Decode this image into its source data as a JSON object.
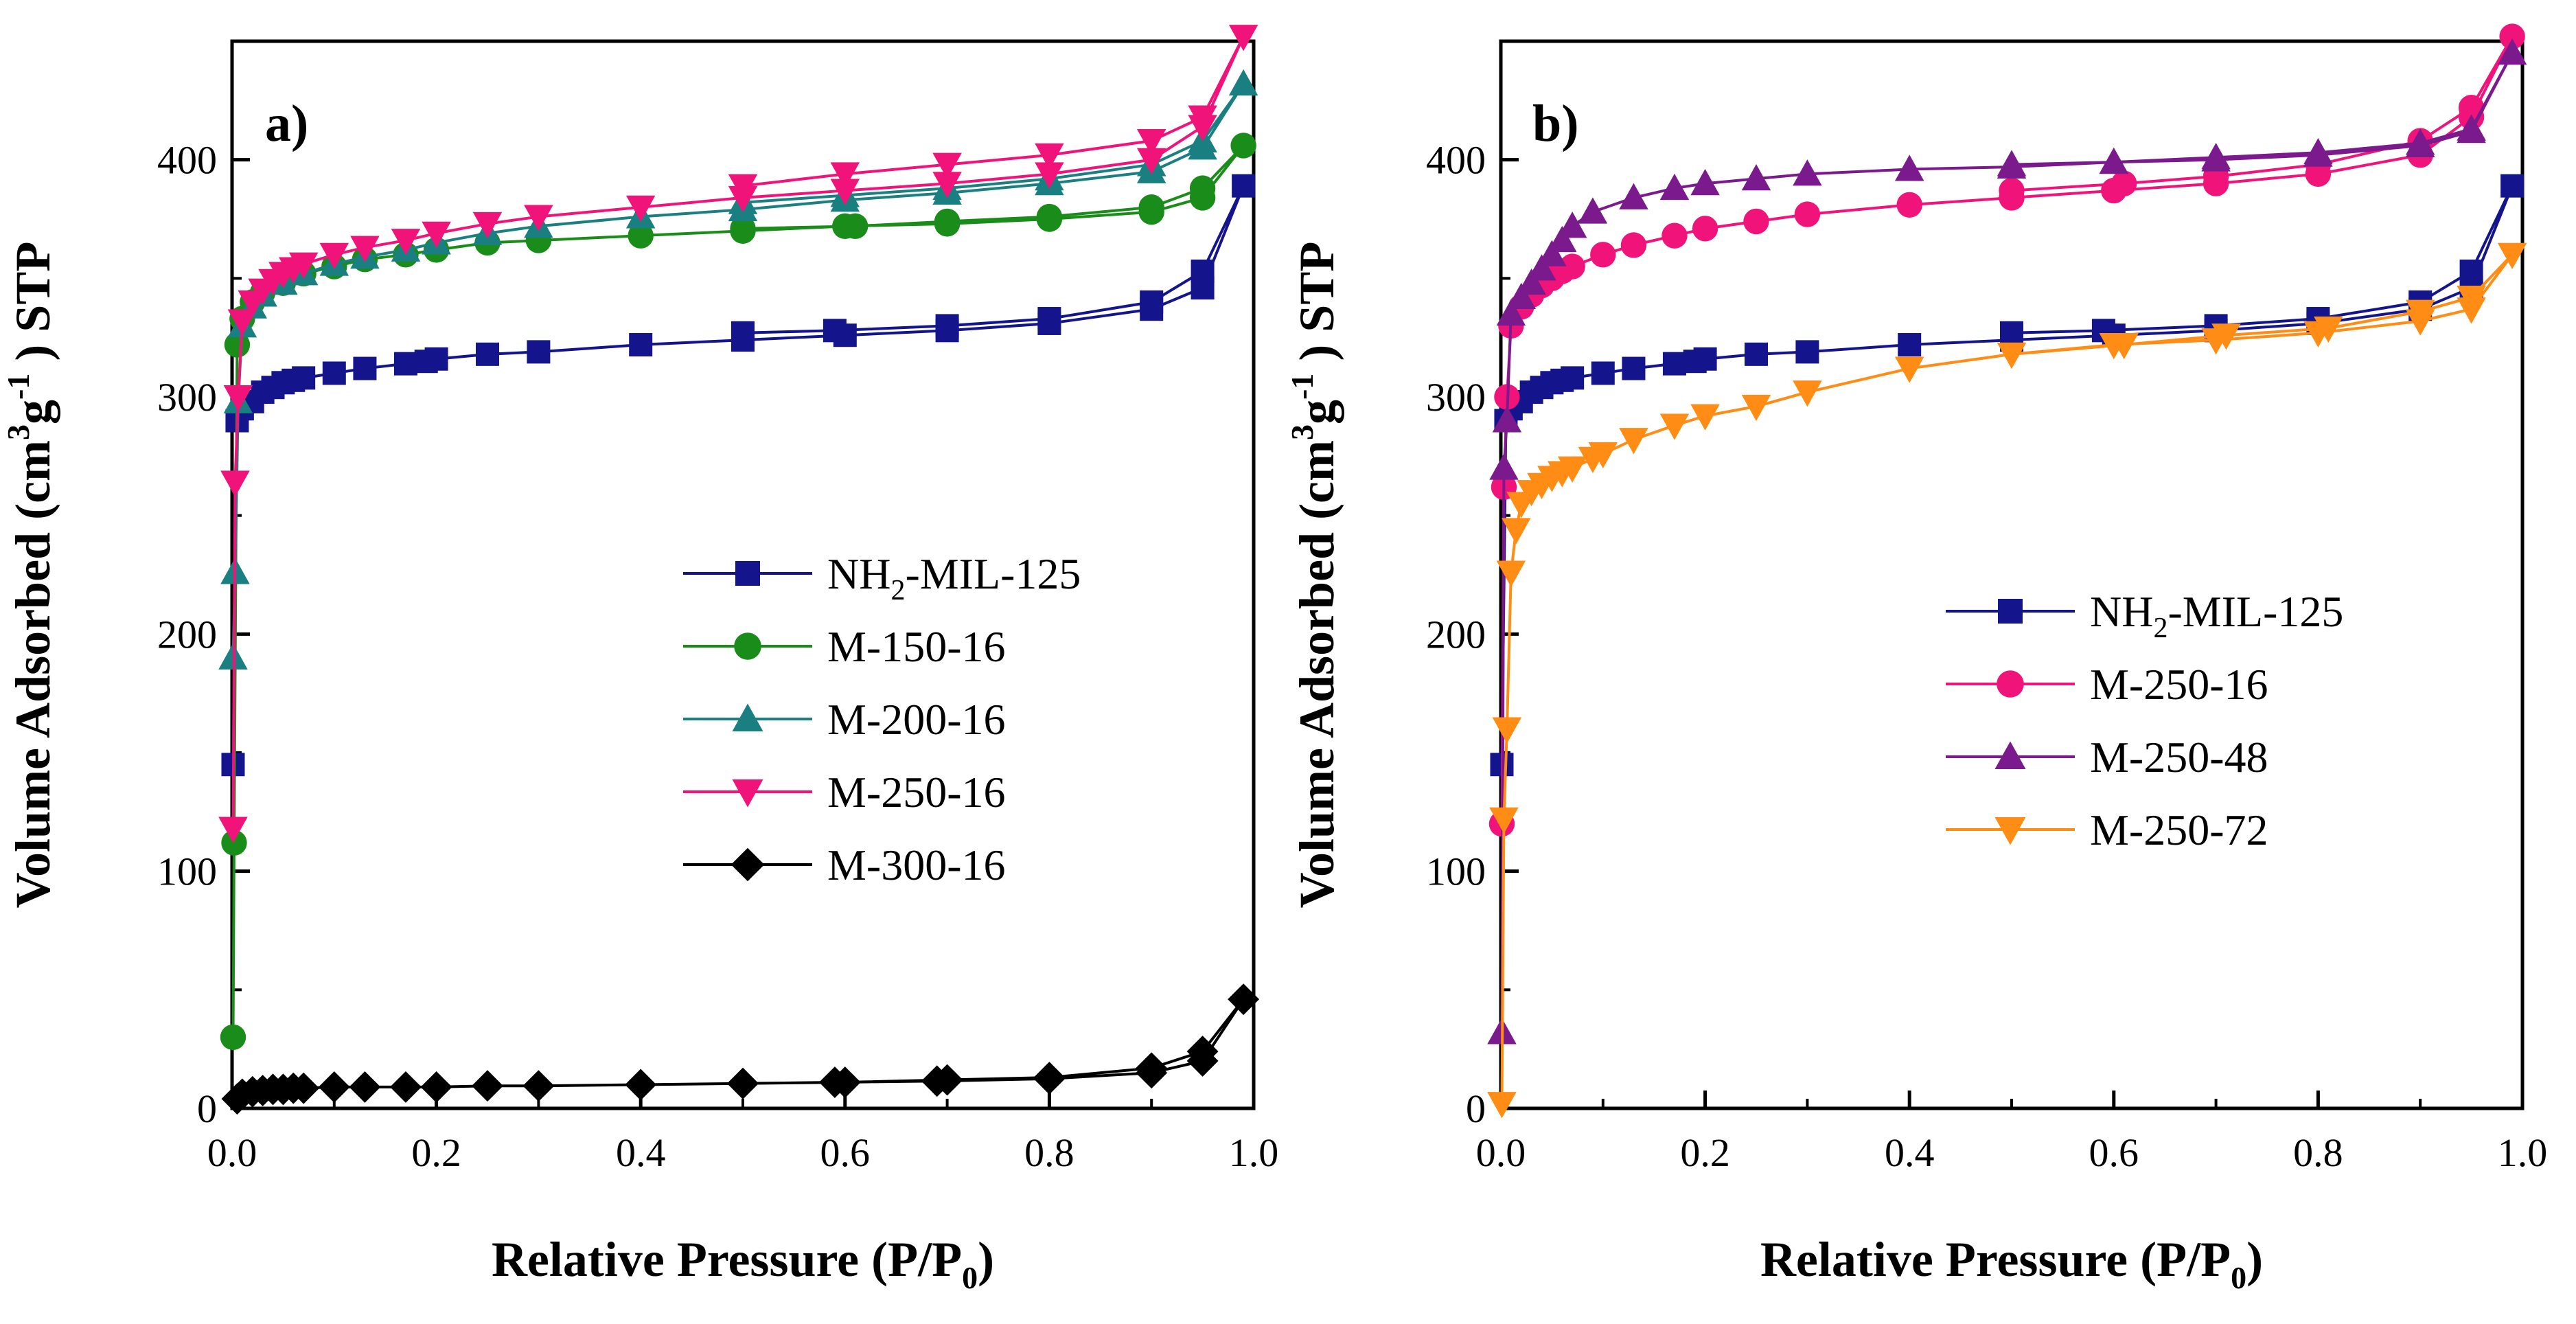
{
  "chart_data": [
    {
      "type": "line",
      "panel_label": "a)",
      "xlabel": {
        "main": "Relative Pressure (P/P",
        "sub": "0",
        "tail": ")"
      },
      "ylabel": {
        "main": "Volume Adsorbed  (cm",
        "sup1": "3",
        "mid": "g",
        "sup2": "-1",
        "tail": ") STP"
      },
      "xlim": [
        0,
        1.0
      ],
      "ylim": [
        0,
        450
      ],
      "xticks": [
        0.0,
        0.2,
        0.4,
        0.6,
        0.8,
        1.0
      ],
      "xtick_labels": [
        "0.0",
        "0.2",
        "0.4",
        "0.6",
        "0.8",
        "1.0"
      ],
      "yticks": [
        0,
        100,
        200,
        300,
        400
      ],
      "ytick_labels": [
        "0",
        "100",
        "200",
        "300",
        "400"
      ],
      "legend_position": "center-right",
      "series": [
        {
          "name": "NH2-MIL-125",
          "label_main": "NH",
          "label_sub": "2",
          "label_tail": "-MIL-125",
          "color": "#14148c",
          "marker": "square",
          "x": [
            0.001,
            0.005,
            0.01,
            0.02,
            0.03,
            0.04,
            0.05,
            0.06,
            0.07,
            0.1,
            0.13,
            0.17,
            0.19,
            0.2,
            0.25,
            0.3,
            0.4,
            0.5,
            0.6,
            0.7,
            0.8,
            0.9,
            0.95,
            0.99,
            0.95,
            0.9,
            0.8,
            0.7,
            0.59,
            0.5
          ],
          "y": [
            145,
            290,
            295,
            298,
            302,
            304,
            306,
            307,
            308,
            310,
            312,
            314,
            315,
            316,
            318,
            319,
            322,
            324,
            326,
            328,
            331,
            337,
            346,
            389,
            353,
            340,
            333,
            330,
            328,
            327
          ]
        },
        {
          "name": "M-150-16",
          "color": "#1a8c1a",
          "marker": "circle",
          "x": [
            0.001,
            0.002,
            0.005,
            0.01,
            0.02,
            0.03,
            0.05,
            0.07,
            0.1,
            0.13,
            0.17,
            0.2,
            0.25,
            0.3,
            0.4,
            0.5,
            0.6,
            0.7,
            0.8,
            0.9,
            0.95,
            0.99,
            0.95,
            0.9,
            0.8,
            0.7,
            0.61,
            0.5
          ],
          "y": [
            30,
            112,
            322,
            333,
            340,
            344,
            348,
            352,
            355,
            358,
            360,
            362,
            365,
            366,
            368,
            370,
            372,
            373,
            375,
            378,
            384,
            406,
            388,
            380,
            376,
            374,
            372,
            371
          ]
        },
        {
          "name": "M-200-16",
          "color": "#1a7f80",
          "marker": "triangle-up",
          "x": [
            0.001,
            0.003,
            0.006,
            0.01,
            0.02,
            0.03,
            0.05,
            0.07,
            0.1,
            0.13,
            0.17,
            0.2,
            0.25,
            0.3,
            0.4,
            0.5,
            0.6,
            0.7,
            0.8,
            0.9,
            0.95,
            0.99,
            0.95,
            0.9,
            0.8,
            0.7,
            0.6,
            0.5
          ],
          "y": [
            190,
            226,
            298,
            330,
            338,
            343,
            348,
            352,
            356,
            359,
            362,
            365,
            369,
            372,
            376,
            379,
            383,
            386,
            390,
            395,
            405,
            432,
            408,
            398,
            392,
            388,
            385,
            382
          ]
        },
        {
          "name": "M-250-16",
          "color": "#f0147a",
          "marker": "triangle-down",
          "x": [
            0.001,
            0.003,
            0.006,
            0.01,
            0.02,
            0.03,
            0.04,
            0.05,
            0.06,
            0.07,
            0.1,
            0.13,
            0.17,
            0.2,
            0.25,
            0.3,
            0.4,
            0.5,
            0.6,
            0.7,
            0.8,
            0.9,
            0.95,
            0.99,
            0.95,
            0.9,
            0.8,
            0.7,
            0.6,
            0.5
          ],
          "y": [
            118,
            264,
            300,
            332,
            340,
            345,
            349,
            352,
            354,
            356,
            360,
            363,
            366,
            369,
            373,
            376,
            380,
            384,
            387,
            390,
            394,
            400,
            414,
            452,
            418,
            408,
            402,
            398,
            394,
            389
          ]
        },
        {
          "name": "M-300-16",
          "color": "#000000",
          "marker": "diamond",
          "x": [
            0.005,
            0.01,
            0.02,
            0.03,
            0.04,
            0.05,
            0.06,
            0.07,
            0.1,
            0.13,
            0.17,
            0.2,
            0.25,
            0.3,
            0.4,
            0.5,
            0.59,
            0.69,
            0.8,
            0.9,
            0.95,
            0.99,
            0.95,
            0.9,
            0.8,
            0.7,
            0.6,
            0.5
          ],
          "y": [
            4,
            6,
            7,
            7.5,
            8,
            8,
            8.5,
            8.5,
            9,
            9,
            9,
            9,
            9.5,
            9.5,
            10,
            10.5,
            11,
            11.5,
            12.5,
            15,
            20,
            46,
            24,
            17,
            13,
            12,
            11,
            10.5
          ]
        }
      ]
    },
    {
      "type": "line",
      "panel_label": "b)",
      "xlabel": {
        "main": "Relative Pressure (P/P",
        "sub": "0",
        "tail": ")"
      },
      "ylabel": {
        "main": "Volume Adsorbed  (cm",
        "sup1": "3",
        "mid": "g",
        "sup2": "-1",
        "tail": ") STP"
      },
      "xlim": [
        0,
        1.0
      ],
      "ylim": [
        0,
        450
      ],
      "xticks": [
        0.0,
        0.2,
        0.4,
        0.6,
        0.8,
        1.0
      ],
      "xtick_labels": [
        "0.0",
        "0.2",
        "0.4",
        "0.6",
        "0.8",
        "1.0"
      ],
      "yticks": [
        0,
        100,
        200,
        300,
        400
      ],
      "ytick_labels": [
        "0",
        "100",
        "200",
        "300",
        "400"
      ],
      "legend_position": "center-right",
      "series": [
        {
          "name": "NH2-MIL-125",
          "label_main": "NH",
          "label_sub": "2",
          "label_tail": "-MIL-125",
          "color": "#14148c",
          "marker": "square",
          "x": [
            0.001,
            0.005,
            0.01,
            0.02,
            0.03,
            0.04,
            0.05,
            0.06,
            0.07,
            0.1,
            0.13,
            0.17,
            0.19,
            0.2,
            0.25,
            0.3,
            0.4,
            0.5,
            0.6,
            0.7,
            0.8,
            0.9,
            0.95,
            0.99,
            0.95,
            0.9,
            0.8,
            0.7,
            0.59,
            0.5
          ],
          "y": [
            145,
            290,
            295,
            298,
            302,
            304,
            306,
            307,
            308,
            310,
            312,
            314,
            315,
            316,
            318,
            319,
            322,
            324,
            326,
            328,
            331,
            337,
            346,
            389,
            353,
            340,
            333,
            330,
            328,
            327
          ]
        },
        {
          "name": "M-250-16",
          "color": "#f0147a",
          "marker": "circle",
          "x": [
            0.001,
            0.003,
            0.006,
            0.01,
            0.02,
            0.03,
            0.04,
            0.05,
            0.06,
            0.07,
            0.1,
            0.13,
            0.17,
            0.2,
            0.25,
            0.3,
            0.4,
            0.5,
            0.6,
            0.7,
            0.8,
            0.9,
            0.95,
            0.99,
            0.95,
            0.9,
            0.8,
            0.7,
            0.61,
            0.5
          ],
          "y": [
            120,
            262,
            300,
            330,
            338,
            343,
            347,
            350,
            353,
            355,
            360,
            364,
            368,
            371,
            374,
            377,
            381,
            384,
            387,
            390,
            394,
            402,
            418,
            452,
            422,
            408,
            398,
            393,
            390,
            387
          ]
        },
        {
          "name": "M-250-48",
          "color": "#7a1a8c",
          "marker": "triangle-up",
          "x": [
            0.001,
            0.003,
            0.006,
            0.01,
            0.02,
            0.03,
            0.04,
            0.05,
            0.06,
            0.07,
            0.09,
            0.13,
            0.17,
            0.2,
            0.25,
            0.3,
            0.4,
            0.5,
            0.6,
            0.7,
            0.8,
            0.9,
            0.95,
            0.99,
            0.95,
            0.9,
            0.8,
            0.7,
            0.6,
            0.5
          ],
          "y": [
            32,
            270,
            290,
            335,
            342,
            348,
            354,
            360,
            366,
            372,
            378,
            384,
            388,
            390,
            392,
            394,
            396,
            397,
            399,
            400,
            402,
            406,
            412,
            445,
            413,
            407,
            403,
            401,
            399,
            398
          ]
        },
        {
          "name": "M-250-72",
          "color": "#ff8c14",
          "marker": "triangle-down",
          "x": [
            0.001,
            0.003,
            0.006,
            0.01,
            0.015,
            0.02,
            0.03,
            0.04,
            0.05,
            0.06,
            0.07,
            0.09,
            0.1,
            0.13,
            0.17,
            0.2,
            0.25,
            0.3,
            0.4,
            0.5,
            0.6,
            0.7,
            0.8,
            0.9,
            0.95,
            0.99,
            0.95,
            0.9,
            0.81,
            0.71,
            0.61,
            0.5
          ],
          "y": [
            2,
            122,
            160,
            226,
            244,
            255,
            260,
            263,
            266,
            268,
            270,
            274,
            276,
            282,
            288,
            292,
            296,
            302,
            312,
            318,
            322,
            324,
            327,
            332,
            337,
            360,
            342,
            336,
            329,
            326,
            322,
            318
          ]
        }
      ]
    }
  ]
}
